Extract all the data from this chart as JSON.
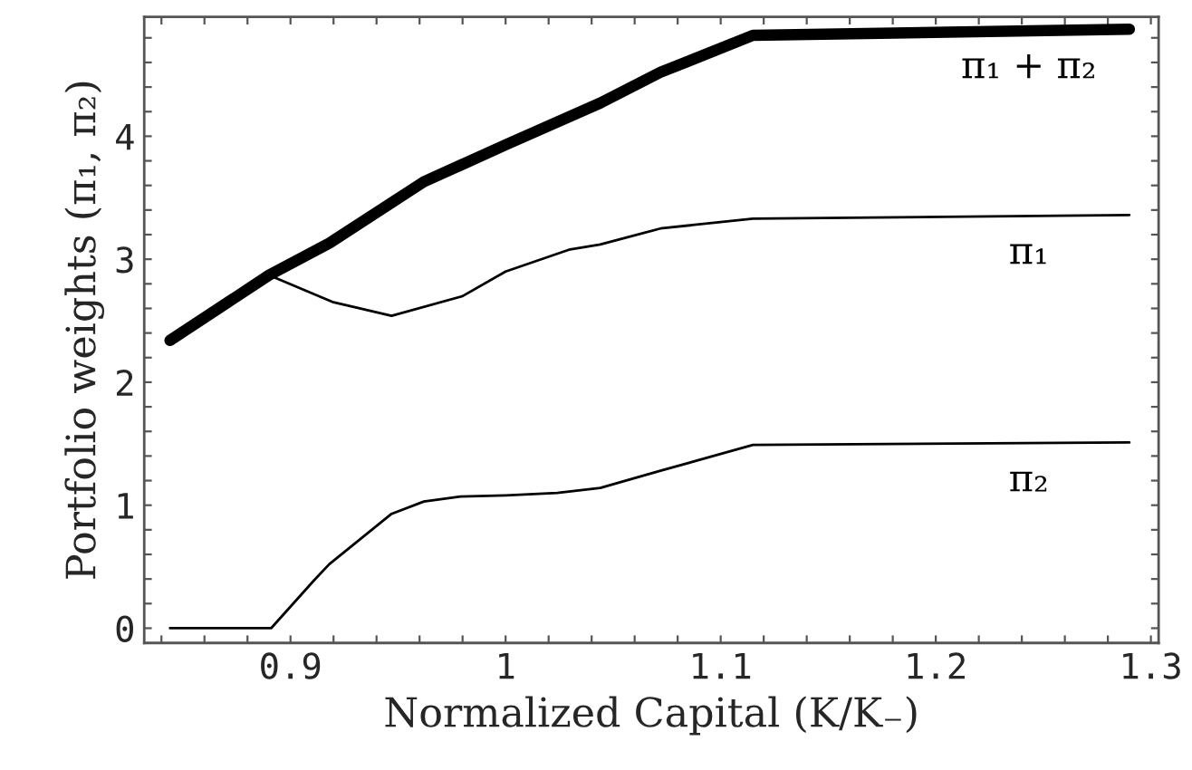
{
  "chart_data": {
    "type": "line",
    "xlabel": "Normalized Capital (K/K₋)",
    "ylabel": "Portfolio weights (π₁, π₂)",
    "xlim": [
      0.832,
      1.3036
    ],
    "ylim": [
      -0.12,
      4.97
    ],
    "xticks": [
      {
        "value": 0.84,
        "label": null
      },
      {
        "value": 0.86,
        "label": null
      },
      {
        "value": 0.88,
        "label": null
      },
      {
        "value": 0.9,
        "label": "0.9"
      },
      {
        "value": 0.92,
        "label": null
      },
      {
        "value": 0.94,
        "label": null
      },
      {
        "value": 0.96,
        "label": null
      },
      {
        "value": 0.98,
        "label": null
      },
      {
        "value": 1,
        "label": "1"
      },
      {
        "value": 1.02,
        "label": null
      },
      {
        "value": 1.04,
        "label": null
      },
      {
        "value": 1.06,
        "label": null
      },
      {
        "value": 1.08,
        "label": null
      },
      {
        "value": 1.1,
        "label": "1.1"
      },
      {
        "value": 1.12,
        "label": null
      },
      {
        "value": 1.14,
        "label": null
      },
      {
        "value": 1.16,
        "label": null
      },
      {
        "value": 1.18,
        "label": null
      },
      {
        "value": 1.2,
        "label": "1.2"
      },
      {
        "value": 1.22,
        "label": null
      },
      {
        "value": 1.24,
        "label": null
      },
      {
        "value": 1.26,
        "label": null
      },
      {
        "value": 1.28,
        "label": null
      },
      {
        "value": 1.3,
        "label": "1.3"
      }
    ],
    "yticks": [
      0,
      {
        "value": 0.2,
        "label": null
      },
      {
        "value": 0.4,
        "label": null
      },
      {
        "value": 0.6,
        "label": null
      },
      {
        "value": 0.8,
        "label": null
      },
      1,
      {
        "value": 1.2,
        "label": null
      },
      {
        "value": 1.4,
        "label": null
      },
      {
        "value": 1.6,
        "label": null
      },
      {
        "value": 1.8,
        "label": null
      },
      2,
      {
        "value": 2.2,
        "label": null
      },
      {
        "value": 2.4,
        "label": null
      },
      {
        "value": 2.6,
        "label": null
      },
      {
        "value": 2.8,
        "label": null
      },
      3,
      {
        "value": 3.2,
        "label": null
      },
      {
        "value": 3.4,
        "label": null
      },
      {
        "value": 3.6,
        "label": null
      },
      {
        "value": 3.8,
        "label": null
      },
      4,
      {
        "value": 4.2,
        "label": null
      },
      {
        "value": 4.4,
        "label": null
      },
      {
        "value": 4.6,
        "label": null
      },
      {
        "value": 4.8,
        "label": null
      }
    ],
    "grid": false,
    "legend": false,
    "series": [
      {
        "name": "π₁ + π₂",
        "color": "#000000",
        "x": [
          0.844,
          0.89,
          0.918,
          0.962,
          1.0,
          1.044,
          1.072,
          1.115,
          1.29
        ],
        "values": [
          2.34,
          2.87,
          3.13,
          3.63,
          3.93,
          4.27,
          4.52,
          4.82,
          4.87
        ]
      },
      {
        "name": "π₁",
        "color": "#000000",
        "x": [
          0.89,
          0.92,
          0.947,
          0.98,
          1.0,
          1.03,
          1.044,
          1.072,
          1.115,
          1.29
        ],
        "values": [
          2.87,
          2.65,
          2.54,
          2.7,
          2.9,
          3.08,
          3.12,
          3.25,
          3.33,
          3.36
        ]
      },
      {
        "name": "π₂",
        "color": "#000000",
        "x": [
          0.844,
          0.891,
          0.911,
          0.918,
          0.947,
          0.962,
          0.979,
          1.0,
          1.024,
          1.044,
          1.072,
          1.115,
          1.29
        ],
        "values": [
          0,
          0,
          0.39,
          0.52,
          0.93,
          1.03,
          1.07,
          1.08,
          1.1,
          1.14,
          1.28,
          1.49,
          1.51
        ]
      }
    ]
  }
}
